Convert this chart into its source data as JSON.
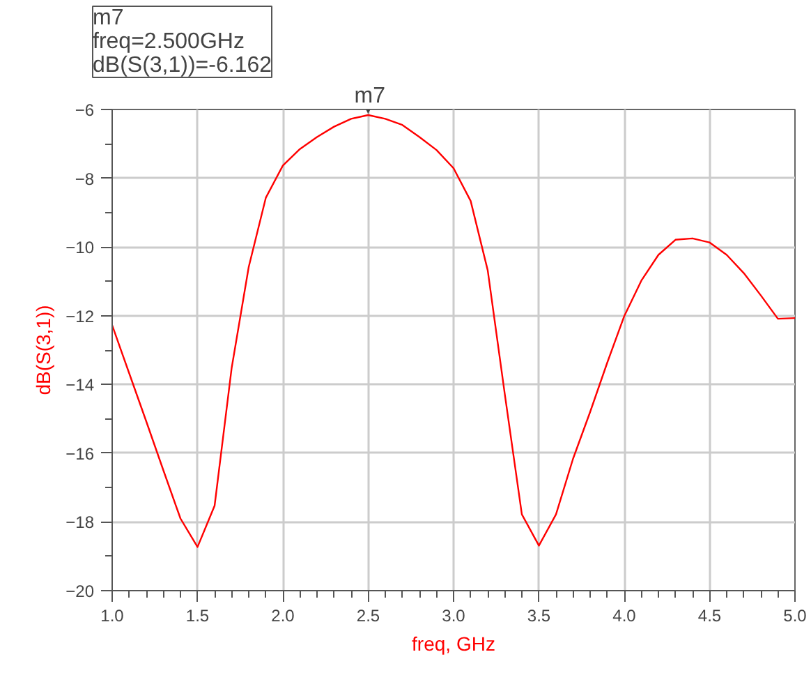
{
  "chart_data": {
    "type": "line",
    "xlabel": "freq, GHz",
    "ylabel": "dB(S(3,1))",
    "x": [
      1.0,
      1.1,
      1.2,
      1.3,
      1.4,
      1.5,
      1.6,
      1.7,
      1.8,
      1.9,
      2.0,
      2.1,
      2.2,
      2.3,
      2.4,
      2.5,
      2.6,
      2.7,
      2.8,
      2.9,
      3.0,
      3.1,
      3.2,
      3.3,
      3.4,
      3.5,
      3.6,
      3.7,
      3.8,
      3.9,
      4.0,
      4.1,
      4.2,
      4.3,
      4.4,
      4.5,
      4.6,
      4.7,
      4.8,
      4.9,
      5.0
    ],
    "series": [
      {
        "color": "#ff0000",
        "values": [
          -12.28,
          -13.68,
          -15.08,
          -16.5,
          -17.9,
          -18.73,
          -17.53,
          -13.52,
          -10.58,
          -8.57,
          -7.63,
          -7.15,
          -6.8,
          -6.5,
          -6.27,
          -6.162,
          -6.27,
          -6.45,
          -6.8,
          -7.18,
          -7.71,
          -8.66,
          -10.68,
          -14.28,
          -17.78,
          -18.69,
          -17.78,
          -16.16,
          -14.8,
          -13.37,
          -12.01,
          -10.98,
          -10.23,
          -9.79,
          -9.75,
          -9.87,
          -10.23,
          -10.76,
          -11.41,
          -12.09,
          -12.07
        ]
      }
    ],
    "xlim": [
      1.0,
      5.0
    ],
    "ylim": [
      -20,
      -6
    ],
    "xticks": [
      {
        "value": 1.0,
        "label": "1.0"
      },
      {
        "value": 1.5,
        "label": "1.5"
      },
      {
        "value": 2.0,
        "label": "2.0"
      },
      {
        "value": 2.5,
        "label": "2.5"
      },
      {
        "value": 3.0,
        "label": "3.0"
      },
      {
        "value": 3.5,
        "label": "3.5"
      },
      {
        "value": 4.0,
        "label": "4.0"
      },
      {
        "value": 4.5,
        "label": "4.5"
      },
      {
        "value": 5.0,
        "label": "5.0"
      }
    ],
    "yticks": [
      -20,
      -18,
      -16,
      -14,
      -12,
      -10,
      -8,
      -6
    ],
    "grid": true,
    "line_style": "solid",
    "marker": "none",
    "annotations": [
      {
        "text": "m7",
        "x": 2.5,
        "y": -6.162
      },
      "m7\nfreq=2.500GHz\ndB(S(3,1))=-6.162"
    ]
  }
}
